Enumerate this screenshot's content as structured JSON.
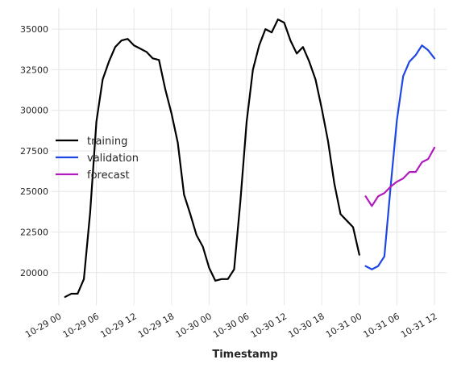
{
  "chart_data": {
    "type": "line",
    "title": "",
    "xlabel": "Timestamp",
    "ylabel": "",
    "x_unit": "hour",
    "x_range": [
      "10-29 00",
      "10-31 14"
    ],
    "ylim": [
      18000,
      36300
    ],
    "grid": true,
    "legend_placement": "center-left",
    "x_ticks": [
      {
        "x": "10-29 00",
        "label": "10-29 00"
      },
      {
        "x": "10-29 06",
        "label": "10-29 06"
      },
      {
        "x": "10-29 12",
        "label": "10-29 12"
      },
      {
        "x": "10-29 18",
        "label": "10-29 18"
      },
      {
        "x": "10-30 00",
        "label": "10-30 00"
      },
      {
        "x": "10-30 06",
        "label": "10-30 06"
      },
      {
        "x": "10-30 12",
        "label": "10-30 12"
      },
      {
        "x": "10-30 18",
        "label": "10-30 18"
      },
      {
        "x": "10-31 00",
        "label": "10-31 00"
      },
      {
        "x": "10-31 06",
        "label": "10-31 06"
      },
      {
        "x": "10-31 12",
        "label": "10-31 12"
      }
    ],
    "y_ticks": [
      {
        "value": 20000,
        "label": "20000"
      },
      {
        "value": 22500,
        "label": "22500"
      },
      {
        "value": 25000,
        "label": "25000"
      },
      {
        "value": 27500,
        "label": "27500"
      },
      {
        "value": 30000,
        "label": "30000"
      },
      {
        "value": 32500,
        "label": "32500"
      },
      {
        "value": 35000,
        "label": "35000"
      }
    ],
    "series": [
      {
        "name": "training",
        "color": "#000000",
        "points": [
          [
            "10-29 01",
            18500
          ],
          [
            "10-29 02",
            18700
          ],
          [
            "10-29 03",
            18700
          ],
          [
            "10-29 04",
            19600
          ],
          [
            "10-29 05",
            23700
          ],
          [
            "10-29 06",
            29300
          ],
          [
            "10-29 07",
            31900
          ],
          [
            "10-29 08",
            33000
          ],
          [
            "10-29 09",
            33900
          ],
          [
            "10-29 10",
            34300
          ],
          [
            "10-29 11",
            34400
          ],
          [
            "10-29 12",
            34000
          ],
          [
            "10-29 13",
            33800
          ],
          [
            "10-29 14",
            33600
          ],
          [
            "10-29 15",
            33200
          ],
          [
            "10-29 16",
            33100
          ],
          [
            "10-29 17",
            31300
          ],
          [
            "10-29 18",
            29800
          ],
          [
            "10-29 19",
            28000
          ],
          [
            "10-29 20",
            24800
          ],
          [
            "10-29 21",
            23600
          ],
          [
            "10-29 22",
            22300
          ],
          [
            "10-29 23",
            21600
          ],
          [
            "10-30 00",
            20300
          ],
          [
            "10-30 01",
            19500
          ],
          [
            "10-30 02",
            19600
          ],
          [
            "10-30 03",
            19600
          ],
          [
            "10-30 04",
            20200
          ],
          [
            "10-30 05",
            24400
          ],
          [
            "10-30 06",
            29300
          ],
          [
            "10-30 07",
            32500
          ],
          [
            "10-30 08",
            34000
          ],
          [
            "10-30 09",
            35000
          ],
          [
            "10-30 10",
            34800
          ],
          [
            "10-30 11",
            35600
          ],
          [
            "10-30 12",
            35400
          ],
          [
            "10-30 13",
            34300
          ],
          [
            "10-30 14",
            33500
          ],
          [
            "10-30 15",
            33900
          ],
          [
            "10-30 16",
            33000
          ],
          [
            "10-30 17",
            31900
          ],
          [
            "10-30 18",
            30100
          ],
          [
            "10-30 19",
            28100
          ],
          [
            "10-30 20",
            25500
          ],
          [
            "10-30 21",
            23600
          ],
          [
            "10-30 22",
            23200
          ],
          [
            "10-30 23",
            22800
          ],
          [
            "10-31 00",
            21100
          ]
        ]
      },
      {
        "name": "validation",
        "color": "#1f47e6",
        "points": [
          [
            "10-31 01",
            20400
          ],
          [
            "10-31 02",
            20200
          ],
          [
            "10-31 03",
            20400
          ],
          [
            "10-31 04",
            21000
          ],
          [
            "10-31 05",
            25300
          ],
          [
            "10-31 06",
            29400
          ],
          [
            "10-31 07",
            32100
          ],
          [
            "10-31 08",
            33000
          ],
          [
            "10-31 09",
            33400
          ],
          [
            "10-31 10",
            34000
          ],
          [
            "10-31 11",
            33700
          ],
          [
            "10-31 12",
            33200
          ]
        ]
      },
      {
        "name": "forecast",
        "color": "#b01cbd",
        "points": [
          [
            "10-31 01",
            24700
          ],
          [
            "10-31 02",
            24100
          ],
          [
            "10-31 03",
            24700
          ],
          [
            "10-31 04",
            24900
          ],
          [
            "10-31 05",
            25300
          ],
          [
            "10-31 06",
            25600
          ],
          [
            "10-31 07",
            25800
          ],
          [
            "10-31 08",
            26200
          ],
          [
            "10-31 09",
            26200
          ],
          [
            "10-31 10",
            26800
          ],
          [
            "10-31 11",
            27000
          ],
          [
            "10-31 12",
            27700
          ]
        ]
      }
    ]
  }
}
